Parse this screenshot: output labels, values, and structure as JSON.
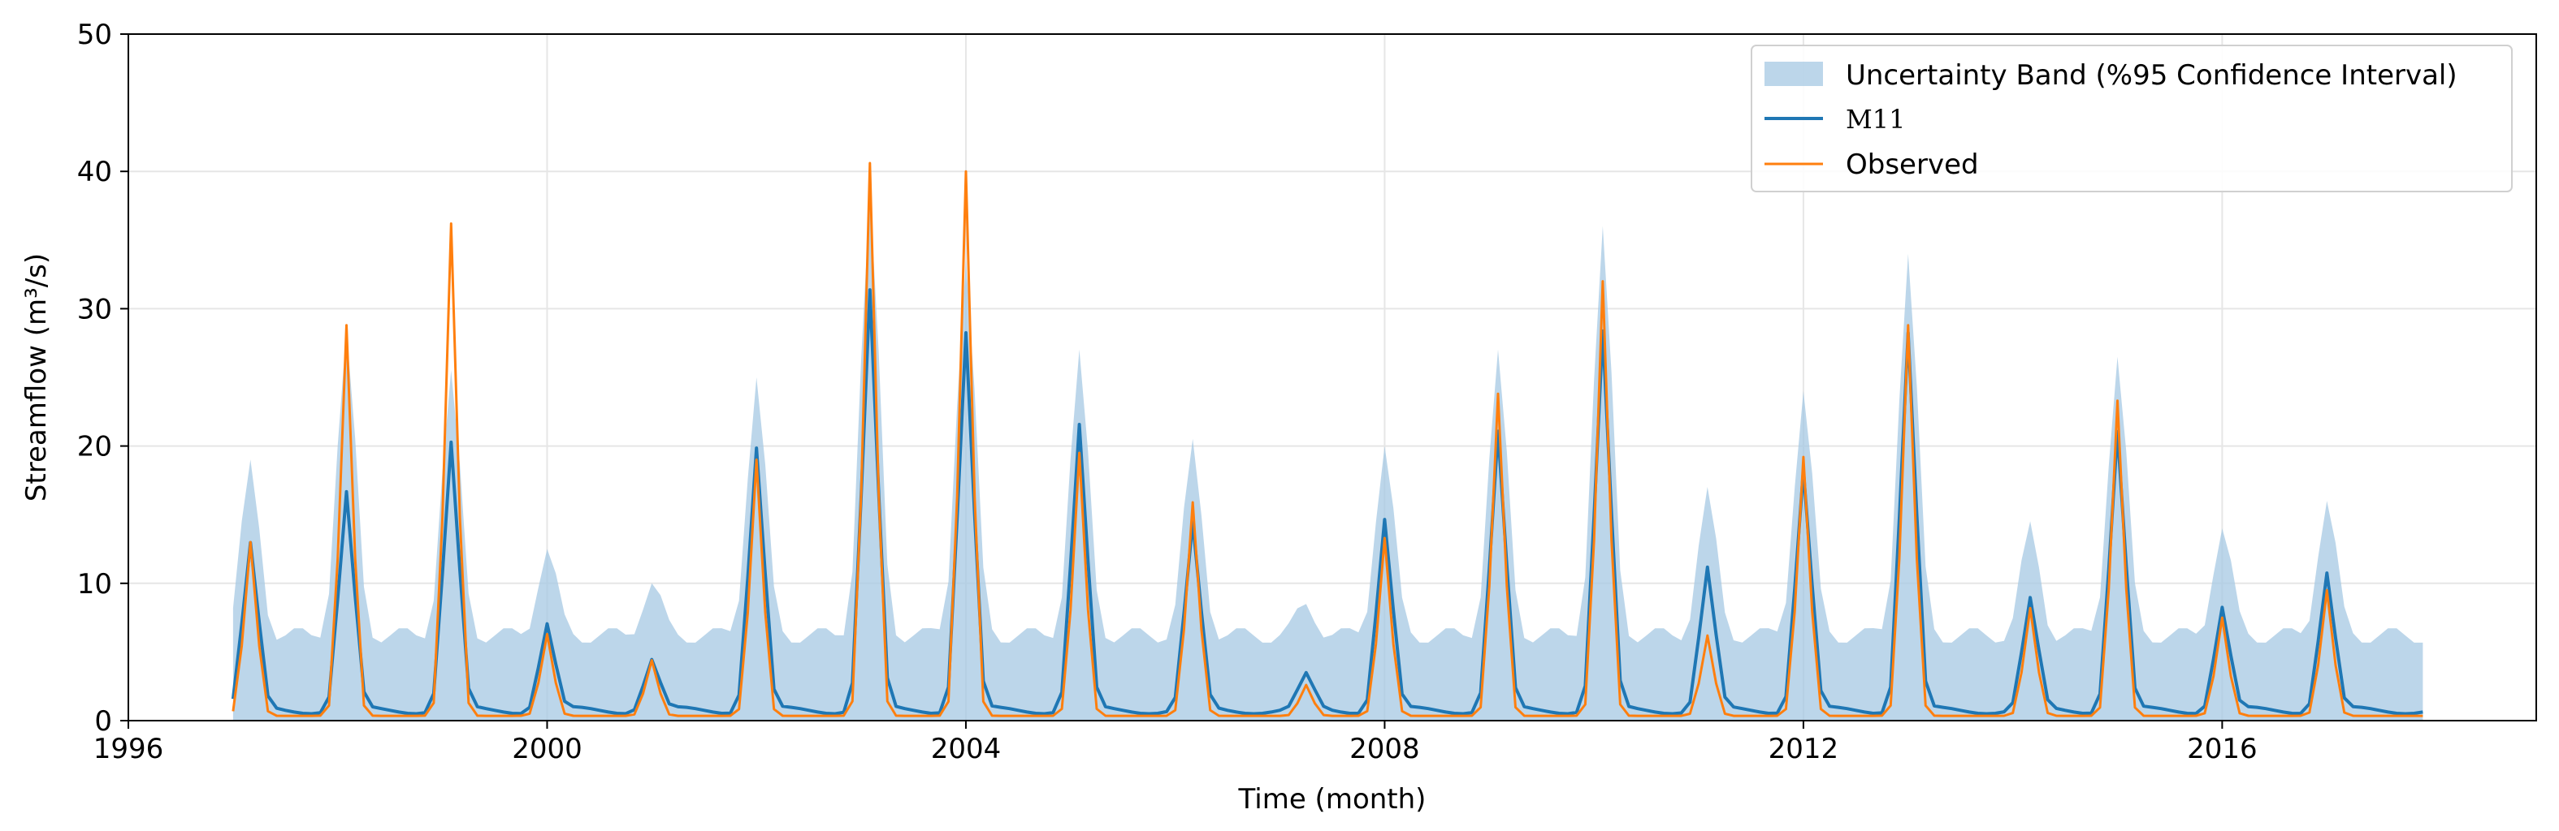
{
  "chart_data": {
    "type": "line",
    "title": "",
    "xlabel": "Time (month)",
    "ylabel": "Streamflow (m³/s)",
    "xlim": [
      "1996-01",
      "2019-01"
    ],
    "ylim": [
      0,
      50
    ],
    "x_ticks": [
      "1996",
      "2000",
      "2004",
      "2008",
      "2012",
      "2016"
    ],
    "y_ticks": [
      "0",
      "10",
      "20",
      "30",
      "40",
      "50"
    ],
    "grid": true,
    "legend_position": "top-right",
    "peaks": [
      {
        "date": "1997-03",
        "observed": 13.0,
        "m11": 12.5,
        "upper": 18.5
      },
      {
        "date": "1998-02",
        "observed": 28.8,
        "m11": 16.3,
        "upper": 28.0
      },
      {
        "date": "1999-02",
        "observed": 36.2,
        "m11": 19.9,
        "upper": 25.0
      },
      {
        "date": "2000-01",
        "observed": 6.3,
        "m11": 6.8,
        "upper": 12.5
      },
      {
        "date": "2001-01",
        "observed": 4.4,
        "m11": 4.2,
        "upper": 10.0
      },
      {
        "date": "2002-01",
        "observed": 19.0,
        "m11": 19.6,
        "upper": 25.0
      },
      {
        "date": "2003-02",
        "observed": 40.6,
        "m11": 31.0,
        "upper": 38.0
      },
      {
        "date": "2004-01",
        "observed": 40.0,
        "m11": 28.0,
        "upper": 33.5
      },
      {
        "date": "2005-02",
        "observed": 19.5,
        "m11": 21.2,
        "upper": 26.5
      },
      {
        "date": "2006-03",
        "observed": 15.9,
        "m11": 14.0,
        "upper": 20.0
      },
      {
        "date": "2007-04",
        "observed": 2.6,
        "m11": 3.0,
        "upper": 8.5
      },
      {
        "date": "2008-01",
        "observed": 13.3,
        "m11": 14.4,
        "upper": 20.0
      },
      {
        "date": "2009-02",
        "observed": 23.8,
        "m11": 20.7,
        "upper": 26.5
      },
      {
        "date": "2010-02",
        "observed": 32.0,
        "m11": 28.0,
        "upper": 35.5
      },
      {
        "date": "2011-02",
        "observed": 6.2,
        "m11": 10.8,
        "upper": 16.5
      },
      {
        "date": "2012-01",
        "observed": 19.2,
        "m11": 18.0,
        "upper": 24.0
      },
      {
        "date": "2013-01",
        "observed": 28.8,
        "m11": 28.0,
        "upper": 34.0
      },
      {
        "date": "2014-03",
        "observed": 8.2,
        "m11": 8.5,
        "upper": 14.0
      },
      {
        "date": "2015-01",
        "observed": 23.3,
        "m11": 20.8,
        "upper": 26.5
      },
      {
        "date": "2016-01",
        "observed": 7.5,
        "m11": 8.0,
        "upper": 14.0
      },
      {
        "date": "2017-01",
        "observed": 9.5,
        "m11": 10.5,
        "upper": 16.0
      }
    ],
    "series": [
      {
        "name": "Uncertainty Band (%95 Confidence Interval)",
        "kind": "band",
        "color": "#a6c8e3"
      },
      {
        "name": "M11",
        "kind": "line",
        "color": "#1f77b4"
      },
      {
        "name": "Observed",
        "kind": "line",
        "color": "#ff7f0e"
      }
    ]
  }
}
